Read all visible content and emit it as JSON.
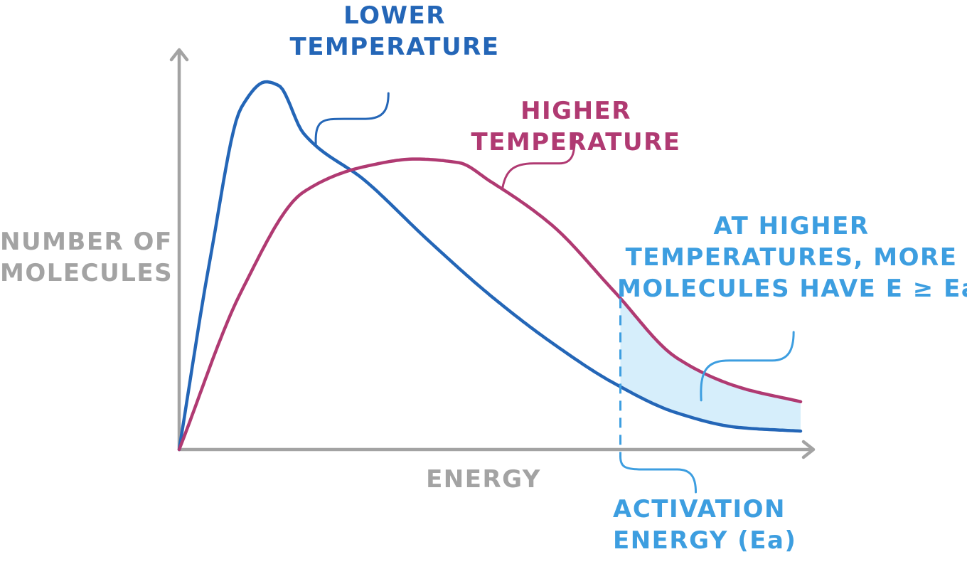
{
  "chart_data": {
    "type": "line",
    "title": "",
    "xlabel": "ENERGY",
    "ylabel": [
      "NUMBER OF",
      "MOLECULES"
    ],
    "xlim": [
      0,
      10
    ],
    "ylim": [
      0,
      1.0
    ],
    "grid": false,
    "activation_energy_x": 7.1,
    "series": [
      {
        "label": [
          "LOWER",
          "TEMPERATURE"
        ],
        "x": [
          0,
          0.5,
          1,
          1.4,
          1.6,
          2,
          3,
          4,
          5,
          6,
          7,
          8,
          9,
          10
        ],
        "values": [
          0,
          0.52,
          0.93,
          1.0,
          0.99,
          0.86,
          0.73,
          0.57,
          0.42,
          0.29,
          0.18,
          0.1,
          0.06,
          0.05
        ]
      },
      {
        "label": [
          "HIGHER",
          "TEMPERATURE"
        ],
        "x": [
          0,
          1,
          2,
          3,
          3.8,
          4.5,
          5,
          6,
          7,
          8,
          9,
          10
        ],
        "values": [
          0,
          0.43,
          0.7,
          0.77,
          0.79,
          0.78,
          0.73,
          0.61,
          0.43,
          0.25,
          0.17,
          0.13
        ]
      }
    ],
    "annotations": [
      {
        "name": "higher-temp-note",
        "lines": [
          "AT HIGHER",
          "TEMPERATURES, MORE",
          "MOLECULES HAVE E ≥ Ea"
        ]
      },
      {
        "name": "activation-energy-note",
        "lines": [
          "ACTIVATION",
          "ENERGY (Ea)"
        ]
      }
    ]
  },
  "colors": {
    "axis": "#a3a3a3",
    "lower_temp": "#2466b7",
    "higher_temp": "#b03a72",
    "highlight": "#3d9ee0",
    "highlight_fill": "#d6eefb"
  }
}
